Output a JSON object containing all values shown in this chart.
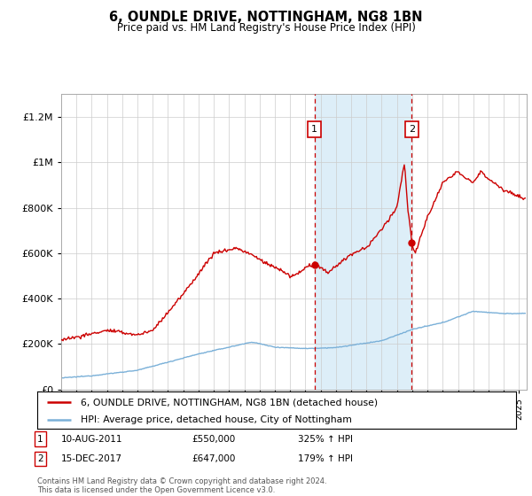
{
  "title": "6, OUNDLE DRIVE, NOTTINGHAM, NG8 1BN",
  "subtitle": "Price paid vs. HM Land Registry's House Price Index (HPI)",
  "ylim": [
    0,
    1300000
  ],
  "yticks": [
    0,
    200000,
    400000,
    600000,
    800000,
    1000000,
    1200000
  ],
  "ytick_labels": [
    "£0",
    "£200K",
    "£400K",
    "£600K",
    "£800K",
    "£1M",
    "£1.2M"
  ],
  "legend_line1": "6, OUNDLE DRIVE, NOTTINGHAM, NG8 1BN (detached house)",
  "legend_line2": "HPI: Average price, detached house, City of Nottingham",
  "annotation1_label": "1",
  "annotation1_date": "10-AUG-2011",
  "annotation1_price": "£550,000",
  "annotation1_hpi": "325% ↑ HPI",
  "annotation1_year": 2011.6,
  "annotation1_value": 550000,
  "annotation2_label": "2",
  "annotation2_date": "15-DEC-2017",
  "annotation2_price": "£647,000",
  "annotation2_hpi": "179% ↑ HPI",
  "annotation2_year": 2017.96,
  "annotation2_value": 647000,
  "red_line_color": "#cc0000",
  "blue_line_color": "#7ab0d8",
  "shaded_region_color": "#ddeef8",
  "footer": "Contains HM Land Registry data © Crown copyright and database right 2024.\nThis data is licensed under the Open Government Licence v3.0.",
  "background_color": "#ffffff",
  "grid_color": "#cccccc",
  "xlim_left": 1995,
  "xlim_right": 2025.5
}
